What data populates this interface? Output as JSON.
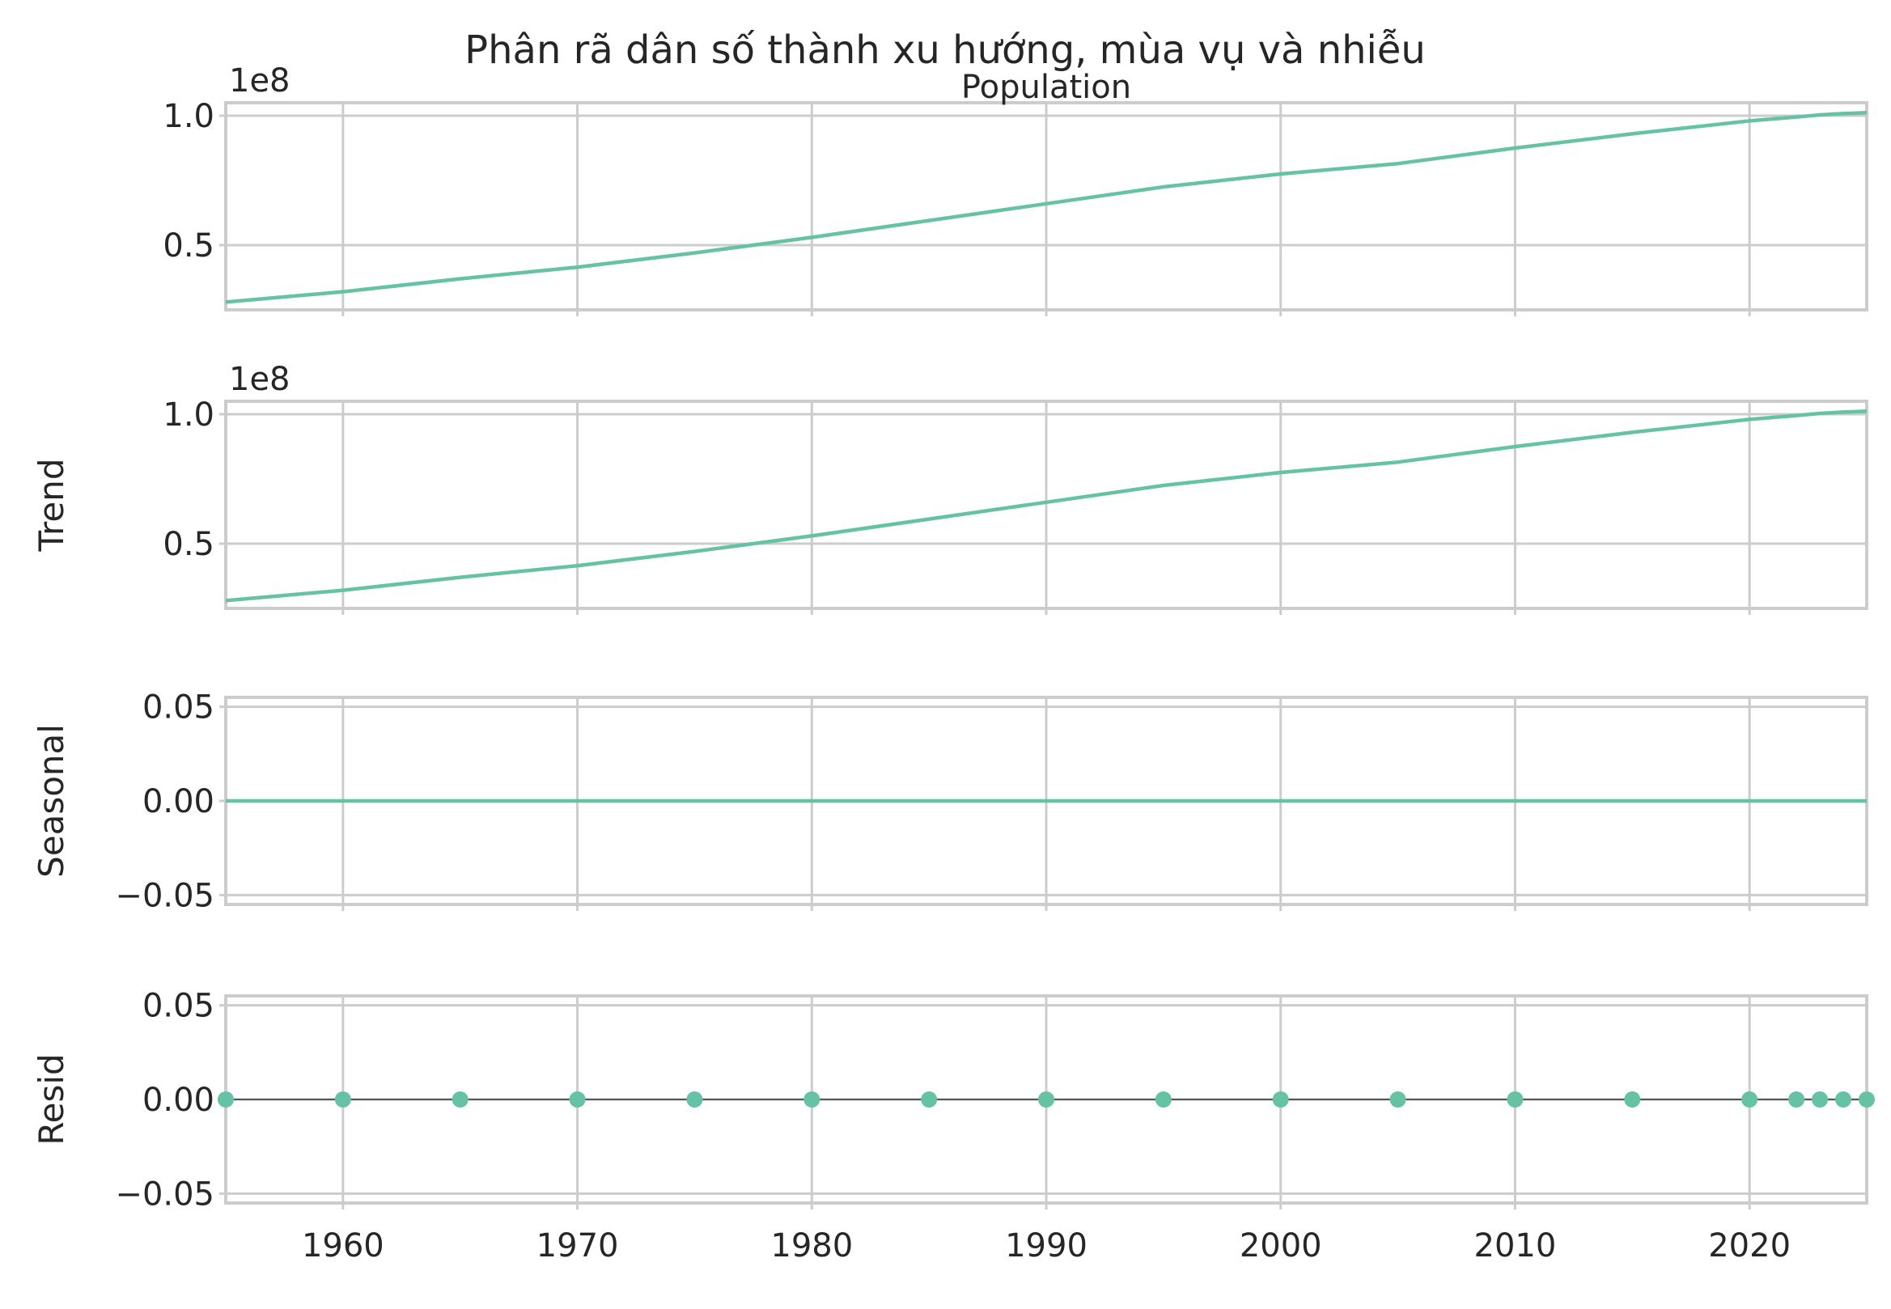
{
  "figure": {
    "suptitle": "Phân rã dân số thành xu hướng, mùa vụ và nhiễu"
  },
  "chart_data": [
    {
      "type": "line",
      "panel": "observed",
      "title": "Population",
      "ylabel": "",
      "offset_label": "1e8",
      "color": "#66c2a5",
      "xlim": [
        1955,
        2025
      ],
      "ylim": [
        0.25,
        1.05
      ],
      "yticks": [
        0.5,
        1.0
      ],
      "ytick_labels": [
        "0.5",
        "1.0"
      ],
      "xticks": [
        1960,
        1970,
        1980,
        1990,
        2000,
        2010,
        2020
      ],
      "x": [
        1955,
        1960,
        1965,
        1970,
        1975,
        1980,
        1985,
        1990,
        1995,
        2000,
        2005,
        2010,
        2015,
        2020,
        2022,
        2023,
        2024,
        2025
      ],
      "y": [
        0.28,
        0.32,
        0.37,
        0.415,
        0.47,
        0.53,
        0.595,
        0.66,
        0.725,
        0.775,
        0.815,
        0.875,
        0.93,
        0.98,
        0.995,
        1.003,
        1.008,
        1.012
      ]
    },
    {
      "type": "line",
      "panel": "trend",
      "title": "",
      "ylabel": "Trend",
      "offset_label": "1e8",
      "color": "#66c2a5",
      "xlim": [
        1955,
        2025
      ],
      "ylim": [
        0.25,
        1.05
      ],
      "yticks": [
        0.5,
        1.0
      ],
      "ytick_labels": [
        "0.5",
        "1.0"
      ],
      "xticks": [
        1960,
        1970,
        1980,
        1990,
        2000,
        2010,
        2020
      ],
      "x": [
        1955,
        1960,
        1965,
        1970,
        1975,
        1980,
        1985,
        1990,
        1995,
        2000,
        2005,
        2010,
        2015,
        2020,
        2022,
        2023,
        2024,
        2025
      ],
      "y": [
        0.28,
        0.32,
        0.37,
        0.415,
        0.47,
        0.53,
        0.595,
        0.66,
        0.725,
        0.775,
        0.815,
        0.875,
        0.93,
        0.98,
        0.995,
        1.003,
        1.008,
        1.012
      ]
    },
    {
      "type": "line",
      "panel": "seasonal",
      "title": "",
      "ylabel": "Seasonal",
      "offset_label": "",
      "color": "#66c2a5",
      "xlim": [
        1955,
        2025
      ],
      "ylim": [
        -0.055,
        0.055
      ],
      "yticks": [
        -0.05,
        0.0,
        0.05
      ],
      "ytick_labels": [
        "−0.05",
        "0.00",
        "0.05"
      ],
      "xticks": [
        1960,
        1970,
        1980,
        1990,
        2000,
        2010,
        2020
      ],
      "x": [
        1955,
        1960,
        1965,
        1970,
        1975,
        1980,
        1985,
        1990,
        1995,
        2000,
        2005,
        2010,
        2015,
        2020,
        2022,
        2023,
        2024,
        2025
      ],
      "y": [
        0,
        0,
        0,
        0,
        0,
        0,
        0,
        0,
        0,
        0,
        0,
        0,
        0,
        0,
        0,
        0,
        0,
        0
      ]
    },
    {
      "type": "scatter",
      "panel": "resid",
      "title": "",
      "ylabel": "Resid",
      "offset_label": "",
      "color": "#66c2a5",
      "baseline": 0,
      "xlim": [
        1955,
        2025
      ],
      "ylim": [
        -0.055,
        0.055
      ],
      "yticks": [
        -0.05,
        0.0,
        0.05
      ],
      "ytick_labels": [
        "−0.05",
        "0.00",
        "0.05"
      ],
      "xticks": [
        1960,
        1970,
        1980,
        1990,
        2000,
        2010,
        2020
      ],
      "xtick_labels": [
        "1960",
        "1970",
        "1980",
        "1990",
        "2000",
        "2010",
        "2020"
      ],
      "x": [
        1955,
        1960,
        1965,
        1970,
        1975,
        1980,
        1985,
        1990,
        1995,
        2000,
        2005,
        2010,
        2015,
        2020,
        2022,
        2023,
        2024,
        2025
      ],
      "y": [
        0,
        0,
        0,
        0,
        0,
        0,
        0,
        0,
        0,
        0,
        0,
        0,
        0,
        0,
        0,
        0,
        0,
        0
      ]
    }
  ]
}
